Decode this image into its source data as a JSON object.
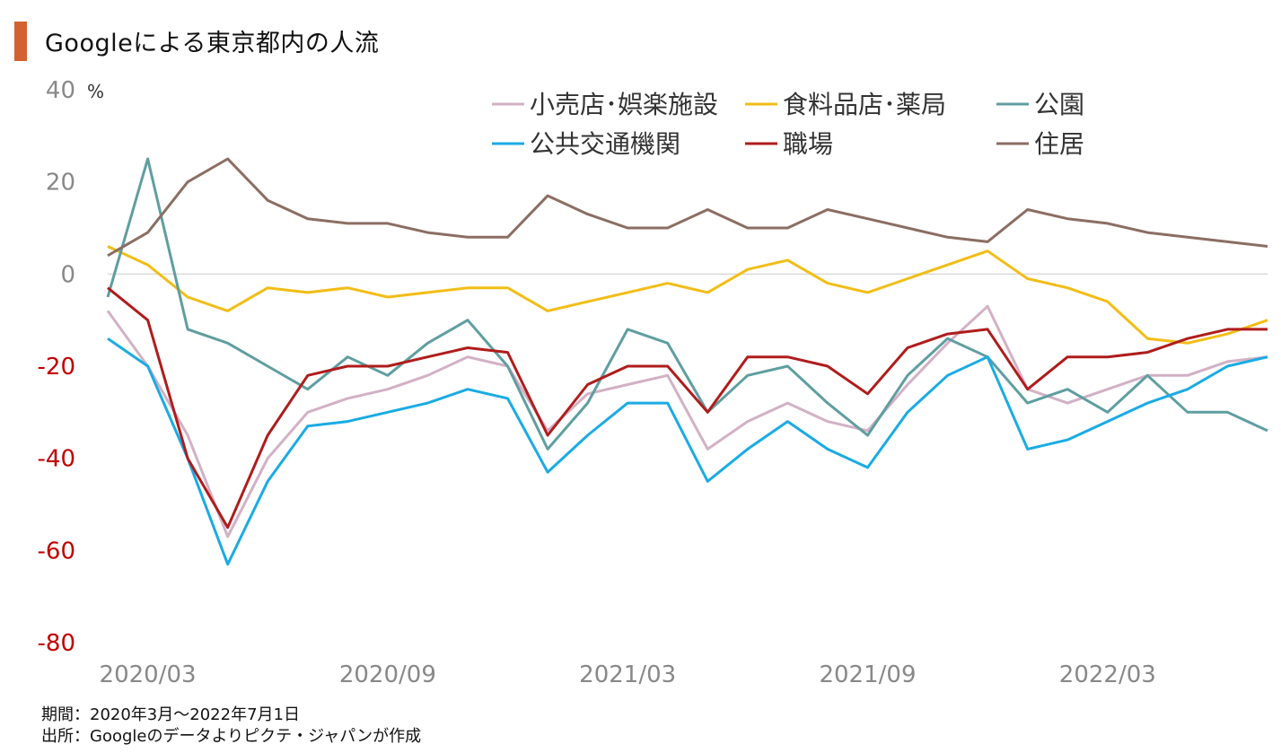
{
  "title": "Googleによる東京都内の人流",
  "notes": {
    "period": "期間：2020年3月～2022年7月1日",
    "source": "出所：Googleのデータよりピクテ・ジャパンが作成"
  },
  "chart_data": {
    "type": "line",
    "y_unit": "%",
    "ylim": [
      -80,
      40
    ],
    "y_ticks": [
      {
        "value": 40,
        "label": "40",
        "color": "#888888"
      },
      {
        "value": 20,
        "label": "20",
        "color": "#888888"
      },
      {
        "value": 0,
        "label": "0",
        "color": "#888888"
      },
      {
        "value": -20,
        "label": "-20",
        "color": "#c00000"
      },
      {
        "value": -40,
        "label": "-40",
        "color": "#c00000"
      },
      {
        "value": -60,
        "label": "-60",
        "color": "#c00000"
      },
      {
        "value": -80,
        "label": "-80",
        "color": "#c00000"
      }
    ],
    "x_ticks": [
      "2020/03",
      "2020/09",
      "2021/03",
      "2021/09",
      "2022/03"
    ],
    "x_range": [
      "2020/02",
      "2022/07"
    ],
    "grid": false,
    "zero_line": true,
    "legend_position": "top-right",
    "series": [
      {
        "name": "小売店･娯楽施設",
        "color": "#d2b1c5",
        "points": [
          [
            "2020/02",
            -8
          ],
          [
            "2020/03",
            -20
          ],
          [
            "2020/04",
            -35
          ],
          [
            "2020/05",
            -57
          ],
          [
            "2020/06",
            -40
          ],
          [
            "2020/07",
            -30
          ],
          [
            "2020/08",
            -27
          ],
          [
            "2020/09",
            -25
          ],
          [
            "2020/10",
            -22
          ],
          [
            "2020/11",
            -18
          ],
          [
            "2020/12",
            -20
          ],
          [
            "2021/01",
            -34
          ],
          [
            "2021/02",
            -26
          ],
          [
            "2021/03",
            -24
          ],
          [
            "2021/04",
            -22
          ],
          [
            "2021/05",
            -38
          ],
          [
            "2021/06",
            -32
          ],
          [
            "2021/07",
            -28
          ],
          [
            "2021/08",
            -32
          ],
          [
            "2021/09",
            -34
          ],
          [
            "2021/10",
            -24
          ],
          [
            "2021/11",
            -15
          ],
          [
            "2021/12",
            -7
          ],
          [
            "2022/01",
            -25
          ],
          [
            "2022/02",
            -28
          ],
          [
            "2022/03",
            -25
          ],
          [
            "2022/04",
            -22
          ],
          [
            "2022/05",
            -22
          ],
          [
            "2022/06",
            -19
          ],
          [
            "2022/07",
            -18
          ]
        ]
      },
      {
        "name": "食料品店･薬局",
        "color": "#f2bd16",
        "points": [
          [
            "2020/02",
            6
          ],
          [
            "2020/03",
            2
          ],
          [
            "2020/04",
            -5
          ],
          [
            "2020/05",
            -8
          ],
          [
            "2020/06",
            -3
          ],
          [
            "2020/07",
            -4
          ],
          [
            "2020/08",
            -3
          ],
          [
            "2020/09",
            -5
          ],
          [
            "2020/10",
            -4
          ],
          [
            "2020/11",
            -3
          ],
          [
            "2020/12",
            -3
          ],
          [
            "2021/01",
            -8
          ],
          [
            "2021/02",
            -6
          ],
          [
            "2021/03",
            -4
          ],
          [
            "2021/04",
            -2
          ],
          [
            "2021/05",
            -4
          ],
          [
            "2021/06",
            1
          ],
          [
            "2021/07",
            3
          ],
          [
            "2021/08",
            -2
          ],
          [
            "2021/09",
            -4
          ],
          [
            "2021/10",
            -1
          ],
          [
            "2021/11",
            2
          ],
          [
            "2021/12",
            5
          ],
          [
            "2022/01",
            -1
          ],
          [
            "2022/02",
            -3
          ],
          [
            "2022/03",
            -6
          ],
          [
            "2022/04",
            -14
          ],
          [
            "2022/05",
            -15
          ],
          [
            "2022/06",
            -13
          ],
          [
            "2022/07",
            -10
          ]
        ]
      },
      {
        "name": "公園",
        "color": "#5f9ea0",
        "points": [
          [
            "2020/02",
            -5
          ],
          [
            "2020/03",
            25
          ],
          [
            "2020/04",
            -12
          ],
          [
            "2020/05",
            -15
          ],
          [
            "2020/06",
            -20
          ],
          [
            "2020/07",
            -25
          ],
          [
            "2020/08",
            -18
          ],
          [
            "2020/09",
            -22
          ],
          [
            "2020/10",
            -15
          ],
          [
            "2020/11",
            -10
          ],
          [
            "2020/12",
            -20
          ],
          [
            "2021/01",
            -38
          ],
          [
            "2021/02",
            -28
          ],
          [
            "2021/03",
            -12
          ],
          [
            "2021/04",
            -15
          ],
          [
            "2021/05",
            -30
          ],
          [
            "2021/06",
            -22
          ],
          [
            "2021/07",
            -20
          ],
          [
            "2021/08",
            -28
          ],
          [
            "2021/09",
            -35
          ],
          [
            "2021/10",
            -22
          ],
          [
            "2021/11",
            -14
          ],
          [
            "2021/12",
            -18
          ],
          [
            "2022/01",
            -28
          ],
          [
            "2022/02",
            -25
          ],
          [
            "2022/03",
            -30
          ],
          [
            "2022/04",
            -22
          ],
          [
            "2022/05",
            -30
          ],
          [
            "2022/06",
            -30
          ],
          [
            "2022/07",
            -34
          ]
        ]
      },
      {
        "name": "公共交通機関",
        "color": "#1aabe4",
        "points": [
          [
            "2020/02",
            -14
          ],
          [
            "2020/03",
            -20
          ],
          [
            "2020/04",
            -40
          ],
          [
            "2020/05",
            -63
          ],
          [
            "2020/06",
            -45
          ],
          [
            "2020/07",
            -33
          ],
          [
            "2020/08",
            -32
          ],
          [
            "2020/09",
            -30
          ],
          [
            "2020/10",
            -28
          ],
          [
            "2020/11",
            -25
          ],
          [
            "2020/12",
            -27
          ],
          [
            "2021/01",
            -43
          ],
          [
            "2021/02",
            -35
          ],
          [
            "2021/03",
            -28
          ],
          [
            "2021/04",
            -28
          ],
          [
            "2021/05",
            -45
          ],
          [
            "2021/06",
            -38
          ],
          [
            "2021/07",
            -32
          ],
          [
            "2021/08",
            -38
          ],
          [
            "2021/09",
            -42
          ],
          [
            "2021/10",
            -30
          ],
          [
            "2021/11",
            -22
          ],
          [
            "2021/12",
            -18
          ],
          [
            "2022/01",
            -38
          ],
          [
            "2022/02",
            -36
          ],
          [
            "2022/03",
            -32
          ],
          [
            "2022/04",
            -28
          ],
          [
            "2022/05",
            -25
          ],
          [
            "2022/06",
            -20
          ],
          [
            "2022/07",
            -18
          ]
        ]
      },
      {
        "name": "職場",
        "color": "#b01c1c",
        "points": [
          [
            "2020/02",
            -3
          ],
          [
            "2020/03",
            -10
          ],
          [
            "2020/04",
            -40
          ],
          [
            "2020/05",
            -55
          ],
          [
            "2020/06",
            -35
          ],
          [
            "2020/07",
            -22
          ],
          [
            "2020/08",
            -20
          ],
          [
            "2020/09",
            -20
          ],
          [
            "2020/10",
            -18
          ],
          [
            "2020/11",
            -16
          ],
          [
            "2020/12",
            -17
          ],
          [
            "2021/01",
            -35
          ],
          [
            "2021/02",
            -24
          ],
          [
            "2021/03",
            -20
          ],
          [
            "2021/04",
            -20
          ],
          [
            "2021/05",
            -30
          ],
          [
            "2021/06",
            -18
          ],
          [
            "2021/07",
            -18
          ],
          [
            "2021/08",
            -20
          ],
          [
            "2021/09",
            -26
          ],
          [
            "2021/10",
            -16
          ],
          [
            "2021/11",
            -13
          ],
          [
            "2021/12",
            -12
          ],
          [
            "2022/01",
            -25
          ],
          [
            "2022/02",
            -18
          ],
          [
            "2022/03",
            -18
          ],
          [
            "2022/04",
            -17
          ],
          [
            "2022/05",
            -14
          ],
          [
            "2022/06",
            -12
          ],
          [
            "2022/07",
            -12
          ]
        ]
      },
      {
        "name": "住居",
        "color": "#8b6e63",
        "points": [
          [
            "2020/02",
            4
          ],
          [
            "2020/03",
            9
          ],
          [
            "2020/04",
            20
          ],
          [
            "2020/05",
            25
          ],
          [
            "2020/06",
            16
          ],
          [
            "2020/07",
            12
          ],
          [
            "2020/08",
            11
          ],
          [
            "2020/09",
            11
          ],
          [
            "2020/10",
            9
          ],
          [
            "2020/11",
            8
          ],
          [
            "2020/12",
            8
          ],
          [
            "2021/01",
            17
          ],
          [
            "2021/02",
            13
          ],
          [
            "2021/03",
            10
          ],
          [
            "2021/04",
            10
          ],
          [
            "2021/05",
            14
          ],
          [
            "2021/06",
            10
          ],
          [
            "2021/07",
            10
          ],
          [
            "2021/08",
            14
          ],
          [
            "2021/09",
            12
          ],
          [
            "2021/10",
            10
          ],
          [
            "2021/11",
            8
          ],
          [
            "2021/12",
            7
          ],
          [
            "2022/01",
            14
          ],
          [
            "2022/02",
            12
          ],
          [
            "2022/03",
            11
          ],
          [
            "2022/04",
            9
          ],
          [
            "2022/05",
            8
          ],
          [
            "2022/06",
            7
          ],
          [
            "2022/07",
            6
          ]
        ]
      }
    ]
  }
}
